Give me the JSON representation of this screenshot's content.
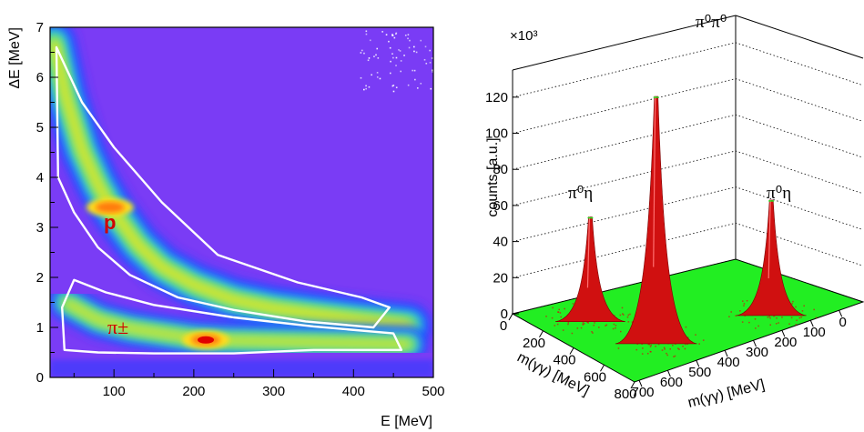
{
  "chart_data": [
    {
      "type": "heatmap",
      "xlabel": "E [MeV]",
      "ylabel": "ΔE [MeV]",
      "xlim": [
        20,
        500
      ],
      "ylim": [
        0,
        7
      ],
      "x_ticks": [
        "100",
        "200",
        "300",
        "400",
        "500"
      ],
      "y_ticks": [
        "0",
        "1",
        "2",
        "3",
        "4",
        "5",
        "6",
        "7"
      ],
      "background_color": "#7a3cf5",
      "colormap": [
        "#7a3cf5",
        "#2a3bff",
        "#1f8fff",
        "#28d6e0",
        "#48e07a",
        "#c8f034",
        "#ffdc1a",
        "#ff7a10",
        "#e00000"
      ],
      "bands": [
        {
          "label": "p",
          "label_at": {
            "x": 100,
            "y": 3.1
          },
          "points": [
            [
              25,
              6.7
            ],
            [
              40,
              5.6
            ],
            [
              60,
              4.55
            ],
            [
              80,
              3.85
            ],
            [
              100,
              3.3
            ],
            [
              130,
              2.65
            ],
            [
              160,
              2.2
            ],
            [
              200,
              1.85
            ],
            [
              250,
              1.55
            ],
            [
              300,
              1.38
            ],
            [
              350,
              1.27
            ],
            [
              400,
              1.17
            ],
            [
              440,
              1.1
            ],
            [
              470,
              1.05
            ]
          ],
          "peak": {
            "x": 95,
            "y": 3.4
          }
        },
        {
          "label": "π±",
          "label_at": {
            "x": 100,
            "y": 0.95
          },
          "points": [
            [
              40,
              1.5
            ],
            [
              80,
              1.15
            ],
            [
              120,
              0.98
            ],
            [
              160,
              0.88
            ],
            [
              200,
              0.78
            ],
            [
              240,
              0.74
            ],
            [
              300,
              0.72
            ],
            [
              360,
              0.7
            ],
            [
              420,
              0.68
            ],
            [
              470,
              0.66
            ]
          ],
          "peak": {
            "x": 215,
            "y": 0.75
          }
        }
      ],
      "cuts": [
        {
          "name": "proton-cut",
          "points": [
            [
              28,
              6.6
            ],
            [
              60,
              5.5
            ],
            [
              100,
              4.6
            ],
            [
              160,
              3.5
            ],
            [
              230,
              2.45
            ],
            [
              330,
              1.9
            ],
            [
              410,
              1.6
            ],
            [
              445,
              1.4
            ],
            [
              425,
              1.0
            ],
            [
              340,
              1.12
            ],
            [
              250,
              1.35
            ],
            [
              180,
              1.6
            ],
            [
              120,
              2.05
            ],
            [
              80,
              2.6
            ],
            [
              50,
              3.3
            ],
            [
              30,
              4.0
            ],
            [
              28,
              6.6
            ]
          ]
        },
        {
          "name": "pion-cut",
          "points": [
            [
              35,
              1.4
            ],
            [
              50,
              1.95
            ],
            [
              90,
              1.7
            ],
            [
              150,
              1.45
            ],
            [
              250,
              1.2
            ],
            [
              350,
              1.02
            ],
            [
              450,
              0.88
            ],
            [
              460,
              0.55
            ],
            [
              350,
              0.55
            ],
            [
              250,
              0.48
            ],
            [
              150,
              0.48
            ],
            [
              80,
              0.5
            ],
            [
              38,
              0.55
            ],
            [
              35,
              1.4
            ]
          ]
        }
      ]
    },
    {
      "type": "surface",
      "xlabel": "m(γγ) [MeV]",
      "ylabel": "m(γγ) [MeV]",
      "zlabel": "counts [a.u.]",
      "z_multiplier": "×10³",
      "zlim": [
        0,
        130
      ],
      "z_ticks": [
        "0",
        "20",
        "40",
        "60",
        "80",
        "100",
        "120"
      ],
      "front_left_axis_ticks": [
        "0",
        "200",
        "400",
        "600",
        "800"
      ],
      "front_right_axis_ticks": [
        "700",
        "600",
        "500",
        "400",
        "300",
        "200",
        "100",
        "0"
      ],
      "floor_color": "#22ee22",
      "peak_color": "#d01010",
      "peaks": [
        {
          "label": "π⁰η",
          "x_mass": 135,
          "y_mass": 548,
          "height": 62
        },
        {
          "label": "π⁰π⁰",
          "x_mass": 135,
          "y_mass": 135,
          "height": 135
        },
        {
          "label": "π⁰η",
          "x_mass": 548,
          "y_mass": 135,
          "height": 56
        }
      ]
    }
  ]
}
